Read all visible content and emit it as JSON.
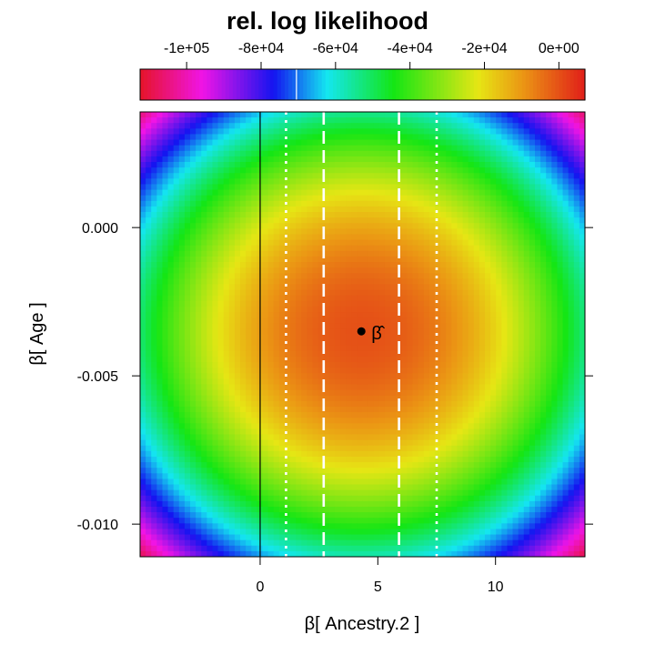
{
  "chart_data": {
    "type": "heatmap",
    "title": "rel. log likelihood",
    "xlabel": "β[ Ancestry.2 ]",
    "ylabel": "β[ Age ]",
    "xlim": [
      -5.1,
      13.8
    ],
    "ylim": [
      -0.0111,
      0.0039
    ],
    "x_ticks": [
      0,
      5,
      10
    ],
    "x_tick_labels": [
      "0",
      "5",
      "10"
    ],
    "y_ticks": [
      0.0,
      -0.005,
      -0.01
    ],
    "y_tick_labels": [
      "0.000",
      "-0.005",
      "-0.010"
    ],
    "colorbar": {
      "range": [
        -112500,
        7000
      ],
      "ticks": [
        -100000,
        -80000,
        -60000,
        -40000,
        -20000,
        0
      ],
      "tick_labels": [
        "-1e+05",
        "-8e+04",
        "-6e+04",
        "-4e+04",
        "-2e+04",
        "0e+00"
      ],
      "marker_value": -70500,
      "palette": "rainbow"
    },
    "surface": {
      "center_x": 4.3,
      "center_y": -0.0035,
      "ellipse_x_extent": 11.3,
      "ellipse_y_extent": 0.0087,
      "value_at_center": 0,
      "value_at_extent": -75000
    },
    "estimate": {
      "x": 4.3,
      "y": -0.0035,
      "label": "β̂"
    },
    "vertical_lines": [
      {
        "x": 0,
        "style": "solid",
        "color": "#000000"
      },
      {
        "x": 2.7,
        "style": "dashed",
        "color": "#ffffff"
      },
      {
        "x": 5.9,
        "style": "dashed",
        "color": "#ffffff"
      },
      {
        "x": 1.1,
        "style": "dotted",
        "color": "#ffffff"
      },
      {
        "x": 7.5,
        "style": "dotted",
        "color": "#ffffff"
      }
    ]
  }
}
